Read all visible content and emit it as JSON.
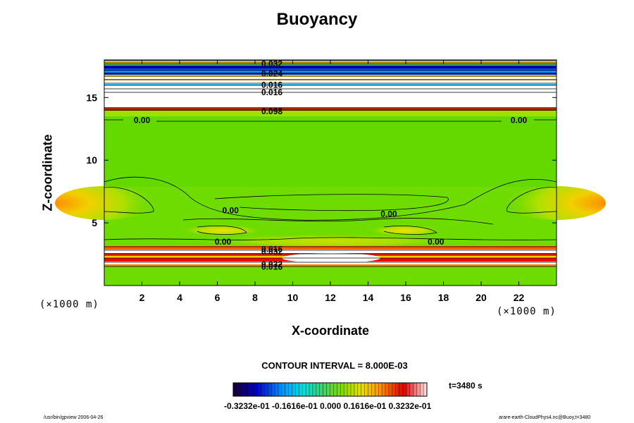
{
  "title": "Buoyancy",
  "chart_data": {
    "type": "heatmap",
    "title": "Buoyancy",
    "xlabel": "X-coordinate",
    "ylabel": "Z-coordinate",
    "x_unit": "(×1000 m)",
    "y_unit": "(×1000 m)",
    "xlim": [
      0,
      24
    ],
    "ylim": [
      0,
      18
    ],
    "x_ticks": [
      2,
      4,
      6,
      8,
      10,
      12,
      14,
      16,
      18,
      20,
      22
    ],
    "y_ticks": [
      5,
      10,
      15
    ],
    "contour_interval": "CONTOUR INTERVAL = 8.000E-03",
    "colorbar": {
      "min": -0.03232,
      "max": 0.03232,
      "tick_labels": [
        "-0.3232e-01",
        "-0.1616e-01",
        "0.000",
        "0.1616e-01",
        "0.3232e-01"
      ],
      "tick_text": "-0.3232e-01 -0.1616e-01 0.000 0.1616e-01 0.3232e-01",
      "colors": [
        "#1a0030",
        "#0000c8",
        "#00a0ff",
        "#00e6e6",
        "#40d070",
        "#7ddc00",
        "#f0e000",
        "#ff8c00",
        "#e00000",
        "#ffffff"
      ]
    },
    "time": "t=3480 s",
    "contour_labels": [
      {
        "text": "0.00",
        "x": 2.0,
        "z": 13.2
      },
      {
        "text": "0.00",
        "x": 22.0,
        "z": 13.2
      },
      {
        "text": "0.00",
        "x": 6.7,
        "z": 6.0
      },
      {
        "text": "0.00",
        "x": 15.1,
        "z": 5.7
      },
      {
        "text": "0.00",
        "x": 6.3,
        "z": 3.5
      },
      {
        "text": "0.00",
        "x": 17.6,
        "z": 3.5
      },
      {
        "text": "0.098",
        "x": 8.9,
        "z": 13.9
      },
      {
        "text": "0.032",
        "x": 8.9,
        "z": 2.7
      },
      {
        "text": "0.016",
        "x": 8.9,
        "z": 2.9
      },
      {
        "text": "0.032",
        "x": 8.9,
        "z": 1.7
      },
      {
        "text": "0.016",
        "x": 8.9,
        "z": 1.5
      },
      {
        "text": "0.032",
        "x": 8.9,
        "z": 17.7
      },
      {
        "text": "0.024",
        "x": 8.9,
        "z": 16.9
      },
      {
        "text": "0.016",
        "x": 8.9,
        "z": 16.0
      },
      {
        "text": "0.016",
        "x": 8.9,
        "z": 15.4
      }
    ]
  },
  "footer_left": "/usr/bin/gpview 2006-04-26",
  "footer_right": "arare-earth-CloudPhys4.nc@Buoy,t=3480"
}
